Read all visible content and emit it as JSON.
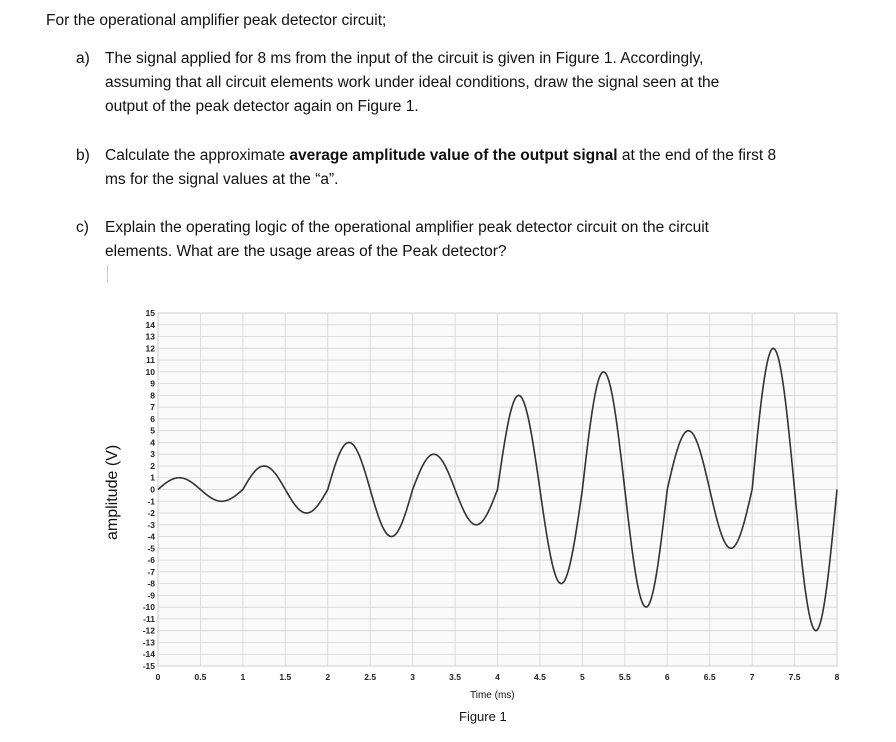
{
  "intro": "For the operational amplifier peak detector circuit;",
  "questions": {
    "a": {
      "letter": "a)",
      "line1": "The signal applied for 8 ms from the input of the circuit is given in Figure 1. Accordingly,",
      "line2": "assuming that all circuit elements work under ideal conditions, draw the signal seen at the",
      "line3": "output of the peak detector again on Figure 1."
    },
    "b": {
      "letter": "b)",
      "pre": "Calculate the approximate ",
      "bold": "average amplitude value of the output signal",
      "post": " at the end of the first 8",
      "line2": "ms for the signal values at the “a”."
    },
    "c": {
      "letter": "c)",
      "line1": "Explain the operating logic of the operational amplifier peak detector circuit on the circuit",
      "line2": "elements. What are the usage areas of the Peak detector?"
    }
  },
  "figure": {
    "caption": "Figure 1"
  },
  "chart_data": {
    "type": "line",
    "xlabel": "Time (ms)",
    "ylabel": "amplitude (V)",
    "xlim": [
      0,
      8
    ],
    "ylim": [
      -15,
      15
    ],
    "grid": true,
    "x_ticks": [
      "0",
      "0.5",
      "1",
      "1.5",
      "2",
      "2.5",
      "3",
      "3.5",
      "4",
      "4.5",
      "5",
      "5.5",
      "6",
      "6.5",
      "7",
      "7.5",
      "8"
    ],
    "y_ticks": [
      "15",
      "14",
      "13",
      "12",
      "11",
      "10",
      "9",
      "8",
      "7",
      "6",
      "5",
      "4",
      "3",
      "2",
      "1",
      "0",
      "-1",
      "-2",
      "-3",
      "-4",
      "-5",
      "-6",
      "-7",
      "-8",
      "-9",
      "-10",
      "-11",
      "-12",
      "-13",
      "-14",
      "-15"
    ],
    "series": [
      {
        "x": [
          0,
          0.25,
          0.75,
          1,
          1.25,
          1.75,
          2,
          2.25,
          2.75,
          3,
          3.25,
          3.75,
          4,
          4.25,
          4.75,
          5,
          5.25,
          5.75,
          6,
          6.25,
          6.75,
          7,
          7.25,
          7.75,
          8
        ],
        "y": [
          0,
          1,
          -1,
          0,
          2,
          -2,
          0,
          4,
          -4,
          0,
          3,
          -3,
          0,
          8,
          -8,
          0,
          10,
          -10,
          0,
          5,
          -5,
          0,
          12,
          -12,
          0
        ],
        "color": "#333333"
      }
    ]
  }
}
